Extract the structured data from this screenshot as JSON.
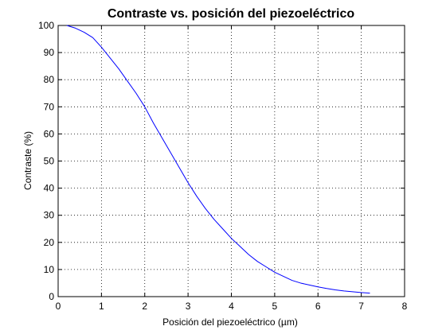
{
  "chart_data": {
    "type": "line",
    "title": "Contraste vs. posición del piezoeléctrico",
    "xlabel": "Posición del piezoeléctrico (µm)",
    "ylabel": "Contraste (%)",
    "xlim": [
      0,
      8
    ],
    "ylim": [
      0,
      100
    ],
    "xticks": [
      0,
      1,
      2,
      3,
      4,
      5,
      6,
      7,
      8
    ],
    "yticks": [
      0,
      10,
      20,
      30,
      40,
      50,
      60,
      70,
      80,
      90,
      100
    ],
    "grid": true,
    "series": [
      {
        "color": "#0000ff",
        "x": [
          0.2,
          0.4,
          0.6,
          0.8,
          1.0,
          1.2,
          1.4,
          1.6,
          1.8,
          2.0,
          2.2,
          2.4,
          2.6,
          2.8,
          3.0,
          3.2,
          3.4,
          3.6,
          3.8,
          4.0,
          4.2,
          4.4,
          4.6,
          4.8,
          5.0,
          5.2,
          5.4,
          5.6,
          5.8,
          6.0,
          6.2,
          6.4,
          6.6,
          6.8,
          7.0,
          7.2
        ],
        "y": [
          100,
          99,
          97.5,
          95.5,
          92,
          88,
          84,
          79.5,
          75,
          70,
          64,
          58.5,
          53,
          47.5,
          42,
          37,
          32.5,
          28.5,
          25,
          21.5,
          18.5,
          15.5,
          13,
          11,
          9,
          7.5,
          6,
          5,
          4.3,
          3.6,
          3,
          2.5,
          2.1,
          1.8,
          1.5,
          1.3
        ]
      }
    ]
  }
}
